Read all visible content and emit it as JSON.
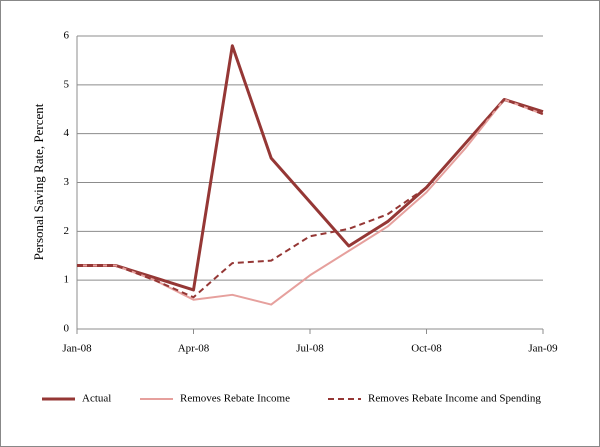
{
  "chart_data": {
    "type": "line",
    "y_label": "Personal Saving Rate, Percent",
    "categories": [
      "Jan-08",
      null,
      null,
      "Apr-08",
      null,
      null,
      "Jul-08",
      null,
      null,
      "Oct-08",
      null,
      null,
      "Jan-09"
    ],
    "series": [
      {
        "name": "Actual",
        "color": "#953735",
        "line_style": "solid",
        "values": [
          1.3,
          1.3,
          1.05,
          0.8,
          5.8,
          3.5,
          2.6,
          1.7,
          2.2,
          2.9,
          3.8,
          4.7,
          4.45
        ]
      },
      {
        "name": "Removes Rebate Income",
        "color": "#e6a09d",
        "line_style": "solid",
        "values": [
          1.3,
          1.3,
          1.0,
          0.6,
          0.7,
          0.5,
          1.1,
          1.6,
          2.1,
          2.8,
          3.7,
          4.7,
          4.4
        ]
      },
      {
        "name": "Removes Rebate Income and Spending",
        "color": "#953735",
        "line_style": "dashed",
        "values": [
          1.3,
          1.3,
          1.0,
          0.65,
          1.35,
          1.4,
          1.9,
          2.05,
          2.35,
          2.9,
          3.8,
          4.7,
          4.4
        ]
      }
    ],
    "ylim": [
      0,
      6
    ],
    "yticks": [
      0,
      1,
      2,
      3,
      4,
      5,
      6
    ],
    "grid": true,
    "legend": "bottom"
  }
}
